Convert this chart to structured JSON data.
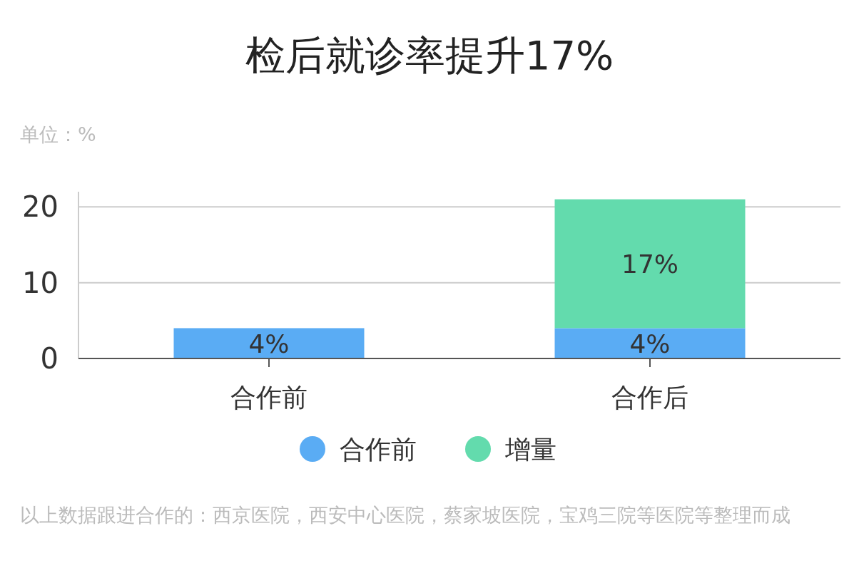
{
  "chart_data": {
    "type": "bar",
    "title": "检后就诊率提升17%",
    "stacked": true,
    "categories": [
      "合作前",
      "合作后"
    ],
    "series": [
      {
        "name": "合作前",
        "color": "#5aacf4",
        "values": [
          4,
          4
        ],
        "value_labels": [
          "4%",
          "4%"
        ]
      },
      {
        "name": "增量",
        "color": "#63dbad",
        "values": [
          null,
          17
        ],
        "value_labels": [
          null,
          "17%"
        ]
      }
    ],
    "ylim": [
      0,
      22
    ],
    "yticks": [
      0,
      10,
      20
    ],
    "grid": "y",
    "legend": "bottom",
    "annotations": [
      "单位：%",
      "以上数据跟进合作的：西京医院，西安中心医院，蔡家坡医院，宝鸡三院等医院等整理而成"
    ]
  }
}
